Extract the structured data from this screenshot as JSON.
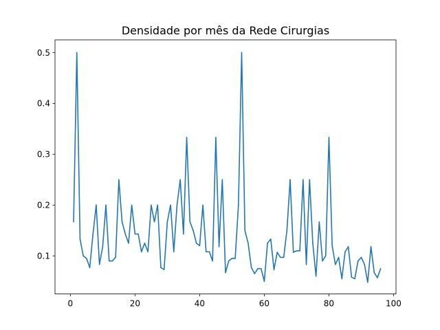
{
  "chart_data": {
    "type": "line",
    "title": "Densidade por mês da Rede Cirurgias",
    "xlabel": "",
    "ylabel": "",
    "xlim": [
      -4.75,
      100.75
    ],
    "ylim": [
      0.025,
      0.525
    ],
    "x_ticks": [
      0,
      20,
      40,
      60,
      80,
      100
    ],
    "y_ticks": [
      0.1,
      0.2,
      0.3,
      0.4,
      0.5
    ],
    "grid": false,
    "series_color": "#1f77b4",
    "x": [
      1,
      2,
      3,
      4,
      5,
      6,
      7,
      8,
      9,
      10,
      11,
      12,
      13,
      14,
      15,
      16,
      17,
      18,
      19,
      20,
      21,
      22,
      23,
      24,
      25,
      26,
      27,
      28,
      29,
      30,
      31,
      32,
      33,
      34,
      35,
      36,
      37,
      38,
      39,
      40,
      41,
      42,
      43,
      44,
      45,
      46,
      47,
      48,
      49,
      50,
      51,
      52,
      53,
      54,
      55,
      56,
      57,
      58,
      59,
      60,
      61,
      62,
      63,
      64,
      65,
      66,
      67,
      68,
      69,
      70,
      71,
      72,
      73,
      74,
      75,
      76,
      77,
      78,
      79,
      80,
      81,
      82,
      83,
      84,
      85,
      86,
      87,
      88,
      89,
      90,
      91,
      92,
      93,
      94,
      95,
      96
    ],
    "y": [
      0.167,
      0.5,
      0.133,
      0.1,
      0.095,
      0.077,
      0.143,
      0.2,
      0.083,
      0.118,
      0.2,
      0.09,
      0.09,
      0.097,
      0.25,
      0.167,
      0.143,
      0.125,
      0.2,
      0.143,
      0.143,
      0.108,
      0.125,
      0.108,
      0.2,
      0.167,
      0.2,
      0.077,
      0.073,
      0.167,
      0.2,
      0.108,
      0.2,
      0.25,
      0.143,
      0.333,
      0.167,
      0.15,
      0.125,
      0.12,
      0.2,
      0.108,
      0.108,
      0.09,
      0.333,
      0.118,
      0.25,
      0.067,
      0.09,
      0.095,
      0.095,
      0.2,
      0.5,
      0.15,
      0.125,
      0.077,
      0.065,
      0.075,
      0.075,
      0.05,
      0.125,
      0.133,
      0.073,
      0.107,
      0.097,
      0.097,
      0.15,
      0.25,
      0.107,
      0.11,
      0.11,
      0.25,
      0.083,
      0.25,
      0.125,
      0.06,
      0.167,
      0.09,
      0.1,
      0.333,
      0.12,
      0.083,
      0.097,
      0.055,
      0.108,
      0.118,
      0.058,
      0.055,
      0.09,
      0.097,
      0.083,
      0.048,
      0.118,
      0.067,
      0.057,
      0.075
    ]
  }
}
